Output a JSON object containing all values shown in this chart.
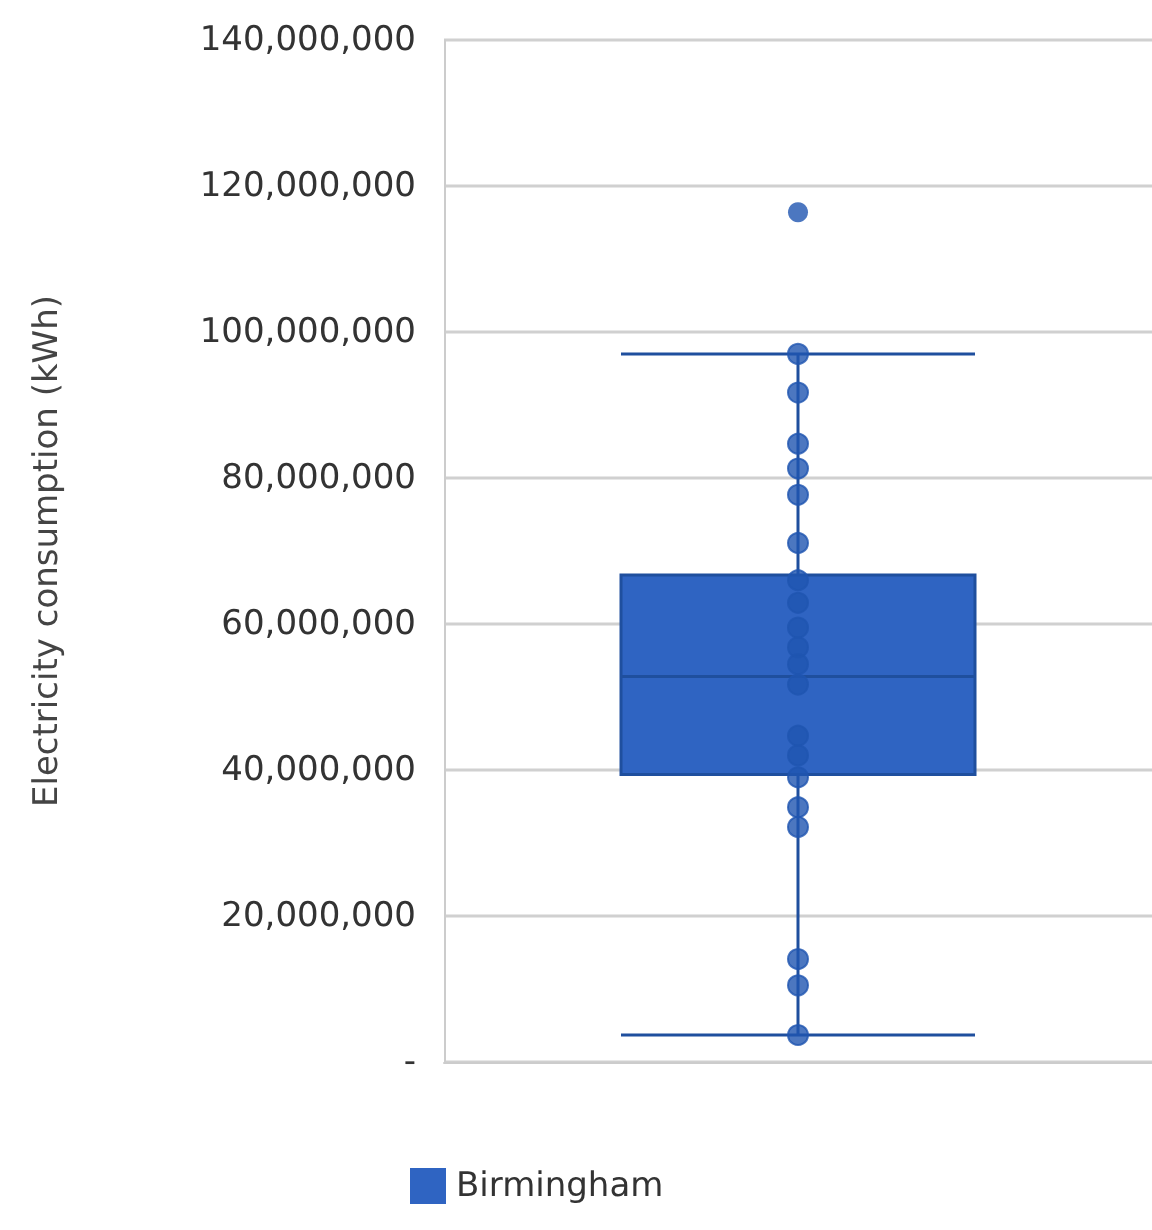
{
  "chart_data": {
    "type": "box",
    "ylabel": "Electricity consumption (kWh)",
    "categories": [
      null
    ],
    "ylim": [
      0,
      140000000
    ],
    "yticks": [
      {
        "value": 0,
        "label": "-"
      },
      {
        "value": 20000000,
        "label": "20,000,000"
      },
      {
        "value": 40000000,
        "label": "40,000,000"
      },
      {
        "value": 60000000,
        "label": "60,000,000"
      },
      {
        "value": 80000000,
        "label": "80,000,000"
      },
      {
        "value": 100000000,
        "label": "100,000,000"
      },
      {
        "value": 120000000,
        "label": "120,000,000"
      },
      {
        "value": 140000000,
        "label": "140,000,000"
      }
    ],
    "grid": "y",
    "legend": "bottom",
    "marker": "circle",
    "series": [
      {
        "name": "Birmingham",
        "color": "#2f64c2",
        "boxes": [
          {
            "low": 3700000,
            "q1": 39400000,
            "median": 52800000,
            "q3": 66700000,
            "high": 97000000,
            "outliers": [
              116400000
            ]
          }
        ]
      },
      {
        "type": "scatter",
        "color": "#1f55b0",
        "x": [
          null,
          null,
          null,
          null,
          null,
          null,
          null,
          null,
          null,
          null,
          null,
          null,
          null,
          null,
          null,
          null,
          null,
          null,
          null,
          null
        ],
        "values": [
          97000000,
          91700000,
          84700000,
          81300000,
          77700000,
          71100000,
          66000000,
          62900000,
          59500000,
          56800000,
          54500000,
          51700000,
          44700000,
          42000000,
          39000000,
          34900000,
          32200000,
          14100000,
          10500000,
          3700000
        ]
      }
    ]
  }
}
